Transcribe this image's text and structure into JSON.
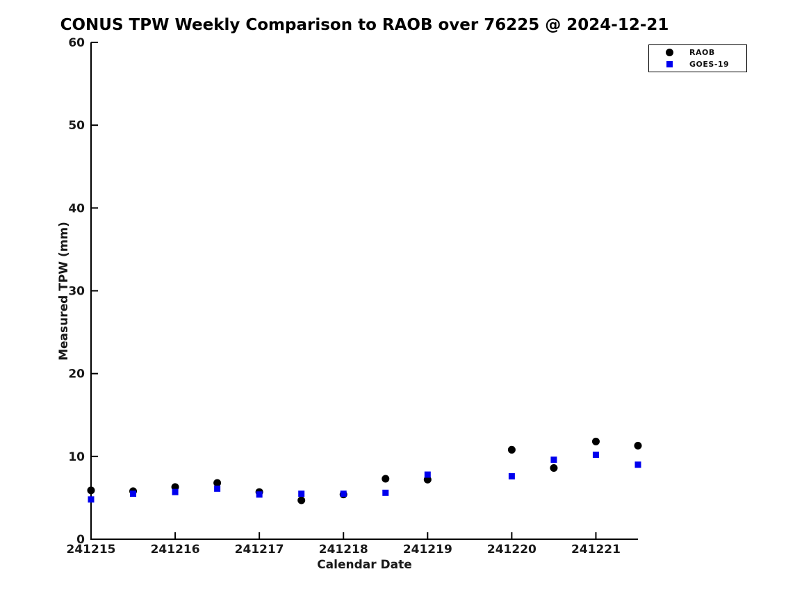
{
  "chart_data": {
    "type": "scatter",
    "title": "CONUS TPW Weekly Comparison to RAOB over 76225 @ 2024-12-21",
    "xlabel": "Calendar Date",
    "ylabel": "Measured TPW (mm)",
    "ylim": [
      0,
      60
    ],
    "y_ticks": [
      0,
      10,
      20,
      30,
      40,
      50,
      60
    ],
    "x_ticks": [
      {
        "value": 241215,
        "label": "241215"
      },
      {
        "value": 241216,
        "label": "241216"
      },
      {
        "value": 241217,
        "label": "241217"
      },
      {
        "value": 241218,
        "label": "241218"
      },
      {
        "value": 241219,
        "label": "241219"
      },
      {
        "value": 241220,
        "label": "241220"
      },
      {
        "value": 241221,
        "label": "241221"
      }
    ],
    "xlim": [
      241215,
      241221.5
    ],
    "grid": false,
    "legend_position": "top-right",
    "colors": {
      "raob": "#000000",
      "goes19": "#0000ee",
      "axis": "#000000",
      "background": "#ffffff"
    },
    "series": [
      {
        "name": "RAOB",
        "marker": "circle",
        "color": "#000000",
        "points": [
          [
            241215.0,
            5.9
          ],
          [
            241215.5,
            5.8
          ],
          [
            241216.0,
            6.3
          ],
          [
            241216.5,
            6.8
          ],
          [
            241217.0,
            5.7
          ],
          [
            241217.5,
            4.7
          ],
          [
            241218.0,
            5.4
          ],
          [
            241218.5,
            7.3
          ],
          [
            241219.0,
            7.2
          ],
          [
            241220.0,
            10.8
          ],
          [
            241220.5,
            8.6
          ],
          [
            241221.0,
            11.8
          ],
          [
            241221.5,
            11.3
          ]
        ]
      },
      {
        "name": "GOES-19",
        "marker": "square",
        "color": "#0000ee",
        "points": [
          [
            241215.0,
            4.8
          ],
          [
            241215.5,
            5.5
          ],
          [
            241216.0,
            5.7
          ],
          [
            241216.5,
            6.1
          ],
          [
            241217.0,
            5.4
          ],
          [
            241217.5,
            5.5
          ],
          [
            241218.0,
            5.5
          ],
          [
            241218.5,
            5.6
          ],
          [
            241219.0,
            7.8
          ],
          [
            241220.0,
            7.6
          ],
          [
            241220.5,
            9.6
          ],
          [
            241221.0,
            10.2
          ],
          [
            241221.5,
            9.0
          ]
        ]
      }
    ]
  }
}
